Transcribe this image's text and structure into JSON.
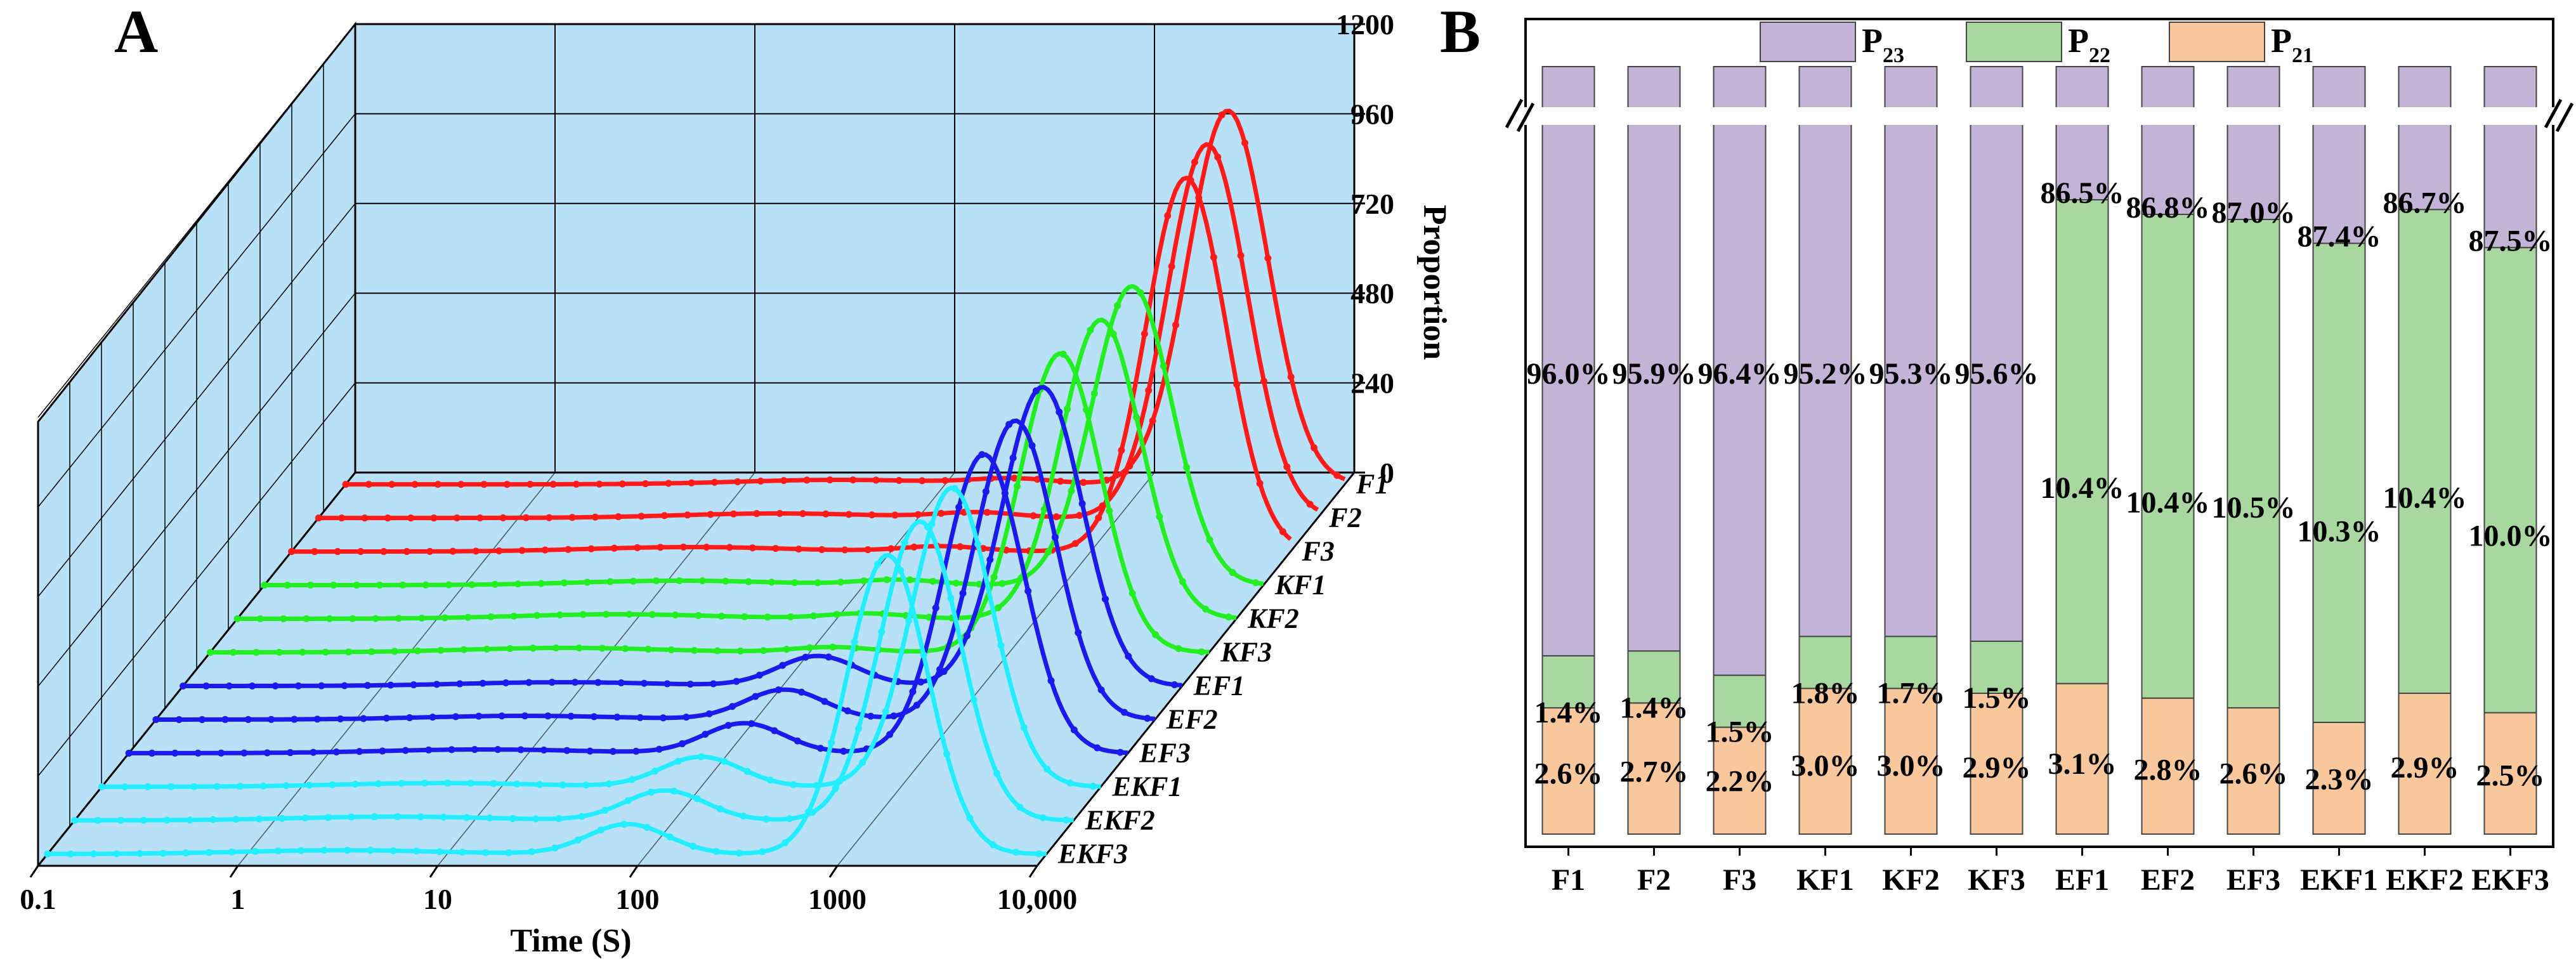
{
  "chart_data": [
    {
      "type": "line",
      "panel": "A",
      "xlabel": "Time (S)",
      "ylabel": "Proportion",
      "x_scale": "log",
      "xlim": [
        0.1,
        10000
      ],
      "ylim": [
        0,
        1200
      ],
      "x_ticks": [
        "0.1",
        "1",
        "10",
        "100",
        "1000",
        "10,000"
      ],
      "x_tick_values": [
        0.1,
        1,
        10,
        100,
        1000,
        10000
      ],
      "y_ticks": [
        0,
        240,
        480,
        720,
        960,
        1200
      ],
      "series_colors": {
        "F": "#ff1a1a",
        "KF": "#22ee22",
        "EF": "#1a1aee",
        "EKF": "#22eeff"
      },
      "series": [
        {
          "name": "F1",
          "color": "#ff1a1a",
          "peaks": [
            {
              "t": 30,
              "amp": 12,
              "w": 0.5
            },
            {
              "t": 220,
              "amp": 14,
              "w": 0.2
            },
            {
              "t": 2600,
              "amp": 1000,
              "w": 0.2
            }
          ]
        },
        {
          "name": "F2",
          "color": "#ff1a1a",
          "peaks": [
            {
              "t": 20,
              "amp": 12,
              "w": 0.5
            },
            {
              "t": 200,
              "amp": 14,
              "w": 0.2
            },
            {
              "t": 2800,
              "amp": 1000,
              "w": 0.2
            }
          ]
        },
        {
          "name": "F3",
          "color": "#ff1a1a",
          "peaks": [
            {
              "t": 10,
              "amp": 12,
              "w": 0.5
            },
            {
              "t": 180,
              "amp": 14,
              "w": 0.2
            },
            {
              "t": 3000,
              "amp": 1000,
              "w": 0.2
            }
          ]
        },
        {
          "name": "KF1",
          "color": "#22ee22",
          "peaks": [
            {
              "t": 12,
              "amp": 12,
              "w": 0.5
            },
            {
              "t": 150,
              "amp": 14,
              "w": 0.2
            },
            {
              "t": 2200,
              "amp": 800,
              "w": 0.2
            }
          ]
        },
        {
          "name": "KF2",
          "color": "#22ee22",
          "peaks": [
            {
              "t": 8,
              "amp": 12,
              "w": 0.5
            },
            {
              "t": 140,
              "amp": 14,
              "w": 0.2
            },
            {
              "t": 2100,
              "amp": 800,
              "w": 0.2
            }
          ]
        },
        {
          "name": "KF3",
          "color": "#22ee22",
          "peaks": [
            {
              "t": 6,
              "amp": 12,
              "w": 0.5
            },
            {
              "t": 130,
              "amp": 14,
              "w": 0.2
            },
            {
              "t": 1800,
              "amp": 800,
              "w": 0.2
            }
          ]
        },
        {
          "name": "EF1",
          "color": "#1a1aee",
          "peaks": [
            {
              "t": 8,
              "amp": 10,
              "w": 0.5
            },
            {
              "t": 150,
              "amp": 80,
              "w": 0.2
            },
            {
              "t": 2000,
              "amp": 800,
              "w": 0.2
            }
          ]
        },
        {
          "name": "EF2",
          "color": "#1a1aee",
          "peaks": [
            {
              "t": 7,
              "amp": 10,
              "w": 0.5
            },
            {
              "t": 140,
              "amp": 80,
              "w": 0.2
            },
            {
              "t": 2000,
              "amp": 800,
              "w": 0.2
            }
          ]
        },
        {
          "name": "EF3",
          "color": "#1a1aee",
          "peaks": [
            {
              "t": 6,
              "amp": 10,
              "w": 0.5
            },
            {
              "t": 120,
              "amp": 80,
              "w": 0.2
            },
            {
              "t": 1900,
              "amp": 800,
              "w": 0.2
            }
          ]
        },
        {
          "name": "EKF1",
          "color": "#22eeff",
          "peaks": [
            {
              "t": 5,
              "amp": 10,
              "w": 0.5
            },
            {
              "t": 100,
              "amp": 80,
              "w": 0.2
            },
            {
              "t": 1800,
              "amp": 800,
              "w": 0.2
            }
          ]
        },
        {
          "name": "EKF2",
          "color": "#22eeff",
          "peaks": [
            {
              "t": 4,
              "amp": 10,
              "w": 0.5
            },
            {
              "t": 90,
              "amp": 80,
              "w": 0.2
            },
            {
              "t": 1700,
              "amp": 800,
              "w": 0.2
            }
          ]
        },
        {
          "name": "EKF3",
          "color": "#22eeff",
          "peaks": [
            {
              "t": 3,
              "amp": 10,
              "w": 0.5
            },
            {
              "t": 80,
              "amp": 80,
              "w": 0.2
            },
            {
              "t": 1600,
              "amp": 800,
              "w": 0.2
            }
          ]
        }
      ]
    },
    {
      "type": "bar",
      "stacked": true,
      "panel": "B",
      "categories": [
        "F1",
        "F2",
        "F3",
        "KF1",
        "KF2",
        "KF3",
        "EF1",
        "EF2",
        "EF3",
        "EKF1",
        "EKF2",
        "EKF3"
      ],
      "ylim": [
        0,
        100
      ],
      "axis_break": true,
      "legend": {
        "position": "top",
        "entries": [
          {
            "key": "P",
            "sub": "23",
            "color": "#c3b3d6"
          },
          {
            "key": "P",
            "sub": "22",
            "color": "#a8d8a0"
          },
          {
            "key": "P",
            "sub": "21",
            "color": "#f8c79b"
          }
        ]
      },
      "series": [
        {
          "name": "P21",
          "color": "#f8c79b",
          "values": [
            2.6,
            2.7,
            2.2,
            3.0,
            3.0,
            2.9,
            3.1,
            2.8,
            2.6,
            2.3,
            2.9,
            2.5
          ],
          "labels": [
            "2.6%",
            "2.7%",
            "2.2%",
            "3.0%",
            "3.0%",
            "2.9%",
            "3.1%",
            "2.8%",
            "2.6%",
            "2.3%",
            "2.9%",
            "2.5%"
          ]
        },
        {
          "name": "P22",
          "color": "#a8d8a0",
          "values": [
            1.4,
            1.4,
            1.5,
            1.8,
            1.7,
            1.5,
            10.4,
            10.4,
            10.5,
            10.3,
            10.4,
            10.0
          ],
          "labels": [
            "1.4%",
            "1.4%",
            "1.5%",
            "1.8%",
            "1.7%",
            "1.5%",
            "10.4%",
            "10.4%",
            "10.5%",
            "10.3%",
            "10.4%",
            "10.0%"
          ]
        },
        {
          "name": "P23",
          "color": "#c3b3d6",
          "values": [
            96.0,
            95.9,
            96.4,
            95.2,
            95.3,
            95.6,
            86.5,
            86.8,
            87.0,
            87.4,
            86.7,
            87.5
          ],
          "labels": [
            "96.0%",
            "95.9%",
            "96.4%",
            "95.2%",
            "95.3%",
            "95.6%",
            "86.5%",
            "86.8%",
            "87.0%",
            "87.4%",
            "86.7%",
            "87.5%"
          ]
        }
      ]
    }
  ],
  "panel_labels": {
    "a": "A",
    "b": "B"
  }
}
